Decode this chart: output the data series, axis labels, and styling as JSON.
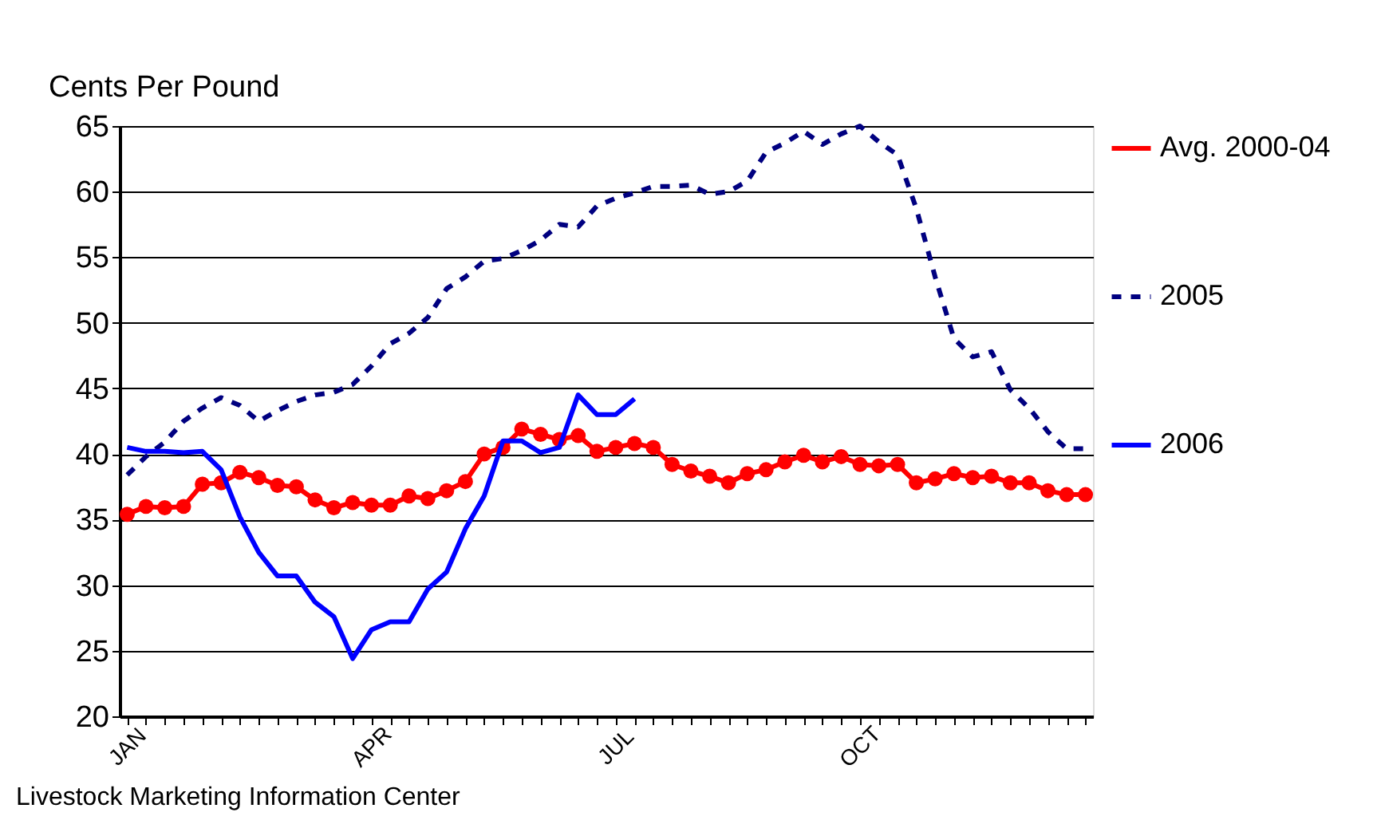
{
  "chart_data": {
    "type": "line",
    "ylabel": "Cents Per Pound",
    "categories": [
      "JAN",
      null,
      null,
      null,
      null,
      null,
      null,
      null,
      null,
      null,
      null,
      null,
      null,
      "APR",
      null,
      null,
      null,
      null,
      null,
      null,
      null,
      null,
      null,
      null,
      null,
      null,
      "JUL",
      null,
      null,
      null,
      null,
      null,
      null,
      null,
      null,
      null,
      null,
      null,
      null,
      "OCT",
      null,
      null,
      null,
      null,
      null,
      null,
      null,
      null,
      null,
      null,
      null,
      null
    ],
    "series": [
      {
        "name": "Avg. 2000-04",
        "color": "#ff0000",
        "marker": "circle",
        "line_style": "solid",
        "values": [
          35.4,
          36.0,
          35.9,
          36.0,
          37.7,
          37.8,
          38.6,
          38.2,
          37.6,
          37.5,
          36.5,
          35.9,
          36.3,
          36.1,
          36.1,
          36.8,
          36.6,
          37.2,
          37.9,
          40.0,
          40.5,
          41.9,
          41.5,
          41.1,
          41.4,
          40.2,
          40.5,
          40.8,
          40.5,
          39.2,
          38.7,
          38.3,
          37.8,
          38.5,
          38.8,
          39.4,
          39.9,
          39.4,
          39.8,
          39.2,
          39.1,
          39.2,
          37.8,
          38.1,
          38.5,
          38.2,
          38.3,
          37.8,
          37.8,
          37.2,
          36.9,
          36.9
        ]
      },
      {
        "name": "2005",
        "color": "#000080",
        "marker": "none",
        "line_style": "dashed",
        "values": [
          38.4,
          39.8,
          40.9,
          42.5,
          43.5,
          44.3,
          43.7,
          42.5,
          43.3,
          44.0,
          44.5,
          44.7,
          45.3,
          46.7,
          48.4,
          49.2,
          50.4,
          52.6,
          53.5,
          54.7,
          54.9,
          55.5,
          56.3,
          57.5,
          57.3,
          58.9,
          59.5,
          59.9,
          60.4,
          60.4,
          60.5,
          59.8,
          60.0,
          60.8,
          63.0,
          63.7,
          64.6,
          63.6,
          64.4,
          65.0,
          63.8,
          62.8,
          58.7,
          53.5,
          48.8,
          47.4,
          47.8,
          44.9,
          43.5,
          41.7,
          40.4,
          40.4
        ]
      },
      {
        "name": "2006",
        "color": "#0000ff",
        "marker": "none",
        "line_style": "solid",
        "values": [
          40.5,
          40.2,
          40.2,
          40.1,
          40.2,
          38.8,
          35.2,
          32.5,
          30.7,
          30.7,
          28.7,
          27.6,
          24.4,
          26.6,
          27.2,
          27.2,
          29.7,
          31.0,
          34.3,
          36.8,
          41.0,
          41.0,
          40.1,
          40.5,
          44.5,
          43.0,
          43.0,
          44.2,
          null,
          null,
          null,
          null,
          null,
          null,
          null,
          null,
          null,
          null,
          null,
          null,
          null,
          null,
          null,
          null,
          null,
          null,
          null,
          null,
          null,
          null,
          null,
          null
        ]
      }
    ],
    "ylim": [
      20,
      65
    ],
    "yticks": [
      20,
      25,
      30,
      35,
      40,
      45,
      50,
      55,
      60,
      65
    ],
    "grid": "y",
    "legend": "right",
    "annotations": [
      "Livestock Marketing Information Center"
    ]
  }
}
